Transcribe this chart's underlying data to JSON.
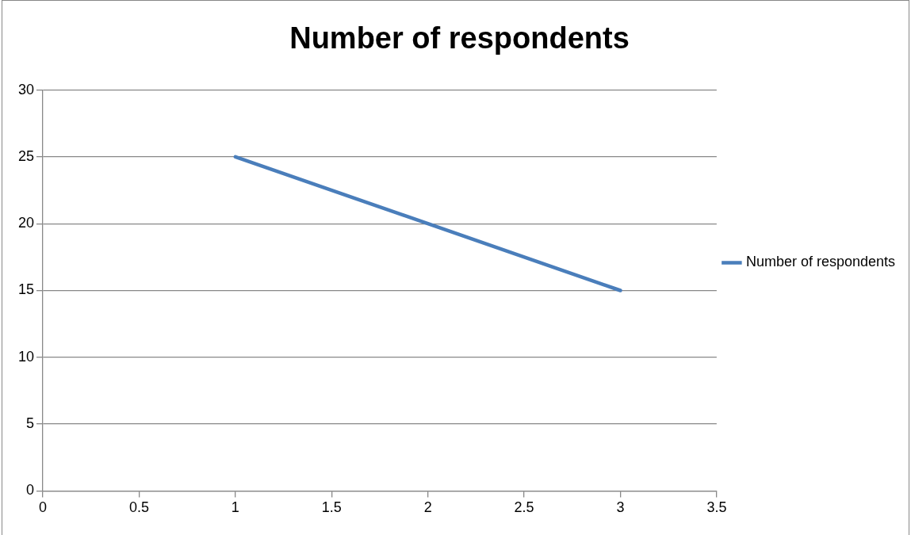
{
  "chart_data": {
    "type": "line",
    "title": "Number of respondents",
    "series": [
      {
        "name": "Number of respondents",
        "color": "#4a7ebb",
        "x": [
          1,
          2,
          3
        ],
        "values": [
          25,
          20,
          15
        ]
      }
    ],
    "xlim": [
      0,
      3.5
    ],
    "xticks": [
      0,
      0.5,
      1,
      1.5,
      2,
      2.5,
      3,
      3.5
    ],
    "ylim": [
      0,
      30
    ],
    "yticks": [
      0,
      5,
      10,
      15,
      20,
      25,
      30
    ],
    "grid": "y",
    "legend": "right",
    "marker": "none",
    "line_style": "solid"
  }
}
